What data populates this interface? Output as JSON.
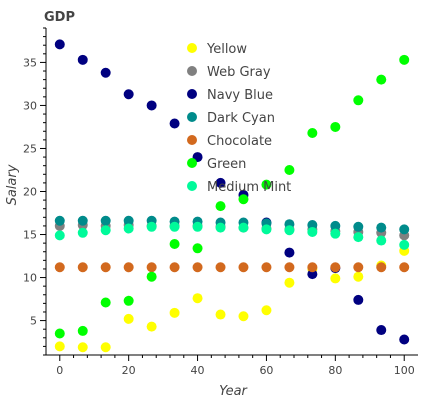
{
  "chart_data": {
    "type": "scatter",
    "title": "GDP",
    "xlabel": "Year",
    "ylabel": "Salary",
    "xlim": [
      -4,
      104
    ],
    "ylim": [
      1,
      39
    ],
    "xticks": [
      0,
      20,
      40,
      60,
      80,
      100
    ],
    "yticks": [
      5,
      10,
      15,
      20,
      25,
      30,
      35
    ],
    "legend_position": "top-center",
    "x": [
      0,
      6.67,
      13.33,
      20,
      26.67,
      33.33,
      40,
      46.67,
      53.33,
      60,
      66.67,
      73.33,
      80,
      86.67,
      93.33,
      100
    ],
    "series": [
      {
        "name": "Yellow",
        "color": "#FFFF00",
        "values": [
          2.0,
          1.9,
          1.9,
          5.2,
          4.3,
          5.9,
          7.6,
          5.7,
          5.5,
          6.2,
          9.4,
          11.0,
          9.9,
          10.1,
          11.4,
          13.1
        ]
      },
      {
        "name": "Web Gray",
        "color": "#808080",
        "values": [
          16.0,
          16.1,
          16.0,
          16.1,
          16.0,
          16.0,
          16.0,
          15.9,
          15.8,
          15.7,
          15.6,
          15.6,
          15.4,
          15.3,
          15.2,
          14.9
        ]
      },
      {
        "name": "Navy Blue",
        "color": "#000080",
        "values": [
          37.1,
          35.3,
          33.8,
          31.3,
          30.0,
          27.9,
          24.0,
          21.0,
          19.6,
          16.4,
          12.9,
          10.4,
          11.1,
          7.4,
          3.9,
          2.8
        ]
      },
      {
        "name": "Dark Cyan",
        "color": "#008B8B",
        "values": [
          16.6,
          16.6,
          16.6,
          16.6,
          16.6,
          16.5,
          16.5,
          16.4,
          16.4,
          16.3,
          16.2,
          16.1,
          16.0,
          15.9,
          15.8,
          15.6
        ]
      },
      {
        "name": "Chocolate",
        "color": "#D2691E",
        "values": [
          11.2,
          11.2,
          11.2,
          11.2,
          11.2,
          11.2,
          11.2,
          11.2,
          11.2,
          11.2,
          11.2,
          11.2,
          11.2,
          11.2,
          11.2,
          11.2
        ]
      },
      {
        "name": "Green",
        "color": "#00FF00",
        "values": [
          3.5,
          3.8,
          7.1,
          7.3,
          10.1,
          13.9,
          13.4,
          18.3,
          19.1,
          20.8,
          22.5,
          26.8,
          27.5,
          30.6,
          33.0,
          35.3
        ]
      },
      {
        "name": "Medium Mint",
        "color": "#00FA9A",
        "values": [
          14.9,
          15.2,
          15.5,
          15.7,
          15.9,
          15.9,
          15.9,
          15.8,
          15.8,
          15.6,
          15.5,
          15.3,
          15.1,
          14.7,
          14.3,
          13.8
        ]
      }
    ]
  }
}
